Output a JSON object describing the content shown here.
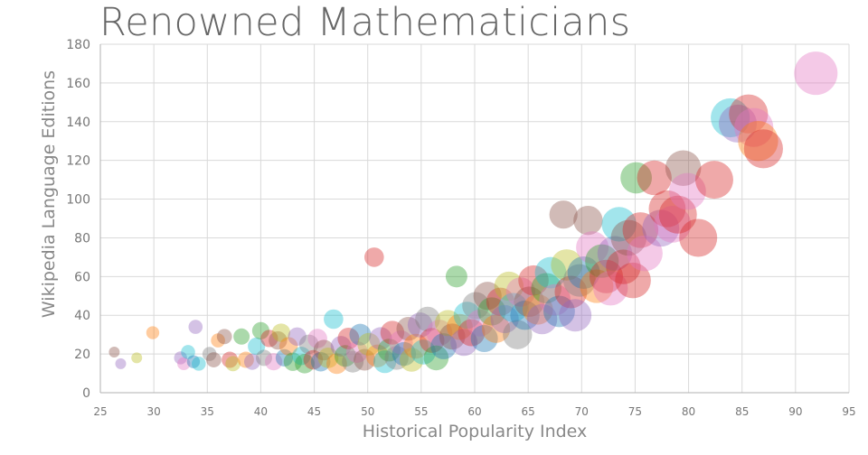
{
  "chart_data": {
    "type": "scatter",
    "title": "Renowned Mathematicians",
    "xlabel": "Historical Popularity Index",
    "ylabel": "Wikipedia Language Editions",
    "xlim": [
      25,
      95
    ],
    "ylim": [
      0,
      180
    ],
    "xticks": [
      25,
      30,
      35,
      40,
      45,
      50,
      55,
      60,
      65,
      70,
      75,
      80,
      85,
      90,
      95
    ],
    "yticks": [
      0,
      20,
      40,
      60,
      80,
      100,
      120,
      140,
      160,
      180
    ],
    "grid": true,
    "legend": "none",
    "palette": [
      "#1f77b4",
      "#ff7f0e",
      "#2ca02c",
      "#d62728",
      "#9467bd",
      "#8c564b",
      "#e377c2",
      "#7f7f7f",
      "#bcbd22",
      "#17becf"
    ],
    "points": [
      {
        "x": 26.3,
        "y": 21,
        "size": 1,
        "color": "#8c564b"
      },
      {
        "x": 26.9,
        "y": 15,
        "size": 1,
        "color": "#9467bd"
      },
      {
        "x": 28.4,
        "y": 18,
        "size": 1,
        "color": "#bcbd22"
      },
      {
        "x": 29.9,
        "y": 31,
        "size": 1.2,
        "color": "#ff7f0e"
      },
      {
        "x": 32.5,
        "y": 18,
        "size": 1.2,
        "color": "#9467bd"
      },
      {
        "x": 32.8,
        "y": 15,
        "size": 1.2,
        "color": "#e377c2"
      },
      {
        "x": 33.2,
        "y": 21,
        "size": 1.3,
        "color": "#17becf"
      },
      {
        "x": 33.7,
        "y": 16,
        "size": 1.2,
        "color": "#1f77b4"
      },
      {
        "x": 33.9,
        "y": 34,
        "size": 1.3,
        "color": "#9467bd"
      },
      {
        "x": 34.2,
        "y": 15,
        "size": 1.3,
        "color": "#17becf"
      },
      {
        "x": 35.2,
        "y": 20,
        "size": 1.3,
        "color": "#7f7f7f"
      },
      {
        "x": 35.6,
        "y": 17,
        "size": 1.4,
        "color": "#8c564b"
      },
      {
        "x": 36.0,
        "y": 27,
        "size": 1.3,
        "color": "#ff7f0e"
      },
      {
        "x": 36.6,
        "y": 29,
        "size": 1.4,
        "color": "#8c564b"
      },
      {
        "x": 37.1,
        "y": 17,
        "size": 1.5,
        "color": "#d62728"
      },
      {
        "x": 37.4,
        "y": 15,
        "size": 1.4,
        "color": "#bcbd22"
      },
      {
        "x": 38.2,
        "y": 29,
        "size": 1.5,
        "color": "#2ca02c"
      },
      {
        "x": 38.6,
        "y": 17,
        "size": 1.5,
        "color": "#ff7f0e"
      },
      {
        "x": 39.2,
        "y": 16,
        "size": 1.5,
        "color": "#9467bd"
      },
      {
        "x": 39.6,
        "y": 24,
        "size": 1.6,
        "color": "#17becf"
      },
      {
        "x": 40.0,
        "y": 32,
        "size": 1.6,
        "color": "#2ca02c"
      },
      {
        "x": 40.3,
        "y": 18,
        "size": 1.5,
        "color": "#7f7f7f"
      },
      {
        "x": 40.8,
        "y": 28,
        "size": 1.6,
        "color": "#d62728"
      },
      {
        "x": 41.2,
        "y": 16,
        "size": 1.6,
        "color": "#e377c2"
      },
      {
        "x": 41.6,
        "y": 27,
        "size": 1.7,
        "color": "#8c564b"
      },
      {
        "x": 41.9,
        "y": 31,
        "size": 1.7,
        "color": "#bcbd22"
      },
      {
        "x": 42.2,
        "y": 18,
        "size": 1.6,
        "color": "#1f77b4"
      },
      {
        "x": 42.6,
        "y": 24,
        "size": 1.7,
        "color": "#ff7f0e"
      },
      {
        "x": 43.0,
        "y": 16,
        "size": 1.7,
        "color": "#2ca02c"
      },
      {
        "x": 43.4,
        "y": 29,
        "size": 1.7,
        "color": "#9467bd"
      },
      {
        "x": 43.8,
        "y": 19,
        "size": 1.7,
        "color": "#17becf"
      },
      {
        "x": 44.1,
        "y": 15,
        "size": 1.8,
        "color": "#2ca02c"
      },
      {
        "x": 44.5,
        "y": 25,
        "size": 1.8,
        "color": "#7f7f7f"
      },
      {
        "x": 44.9,
        "y": 17,
        "size": 1.8,
        "color": "#d62728"
      },
      {
        "x": 45.3,
        "y": 28,
        "size": 1.8,
        "color": "#e377c2"
      },
      {
        "x": 45.6,
        "y": 16,
        "size": 1.8,
        "color": "#1f77b4"
      },
      {
        "x": 45.9,
        "y": 22,
        "size": 1.9,
        "color": "#8c564b"
      },
      {
        "x": 46.3,
        "y": 18,
        "size": 1.9,
        "color": "#bcbd22"
      },
      {
        "x": 46.8,
        "y": 38,
        "size": 1.8,
        "color": "#17becf"
      },
      {
        "x": 47.1,
        "y": 15,
        "size": 1.9,
        "color": "#ff7f0e"
      },
      {
        "x": 47.5,
        "y": 24,
        "size": 1.9,
        "color": "#9467bd"
      },
      {
        "x": 47.9,
        "y": 19,
        "size": 2.0,
        "color": "#2ca02c"
      },
      {
        "x": 48.2,
        "y": 28,
        "size": 2.0,
        "color": "#d62728"
      },
      {
        "x": 48.6,
        "y": 16,
        "size": 2.0,
        "color": "#7f7f7f"
      },
      {
        "x": 49.0,
        "y": 21,
        "size": 2.0,
        "color": "#e377c2"
      },
      {
        "x": 49.3,
        "y": 30,
        "size": 2.0,
        "color": "#1f77b4"
      },
      {
        "x": 49.7,
        "y": 17,
        "size": 2.0,
        "color": "#8c564b"
      },
      {
        "x": 50.1,
        "y": 25,
        "size": 2.1,
        "color": "#bcbd22"
      },
      {
        "x": 50.6,
        "y": 70,
        "size": 1.8,
        "color": "#d62728"
      },
      {
        "x": 50.9,
        "y": 19,
        "size": 2.1,
        "color": "#ff7f0e"
      },
      {
        "x": 51.2,
        "y": 28,
        "size": 2.1,
        "color": "#9467bd"
      },
      {
        "x": 51.6,
        "y": 16,
        "size": 2.1,
        "color": "#17becf"
      },
      {
        "x": 52.0,
        "y": 22,
        "size": 2.1,
        "color": "#2ca02c"
      },
      {
        "x": 52.3,
        "y": 31,
        "size": 2.2,
        "color": "#d62728"
      },
      {
        "x": 52.7,
        "y": 18,
        "size": 2.2,
        "color": "#7f7f7f"
      },
      {
        "x": 53.1,
        "y": 26,
        "size": 2.2,
        "color": "#e377c2"
      },
      {
        "x": 53.4,
        "y": 20,
        "size": 2.2,
        "color": "#1f77b4"
      },
      {
        "x": 53.8,
        "y": 33,
        "size": 2.2,
        "color": "#8c564b"
      },
      {
        "x": 54.1,
        "y": 17,
        "size": 2.2,
        "color": "#bcbd22"
      },
      {
        "x": 54.5,
        "y": 24,
        "size": 2.3,
        "color": "#ff7f0e"
      },
      {
        "x": 54.9,
        "y": 35,
        "size": 2.3,
        "color": "#9467bd"
      },
      {
        "x": 55.2,
        "y": 21,
        "size": 2.3,
        "color": "#17becf"
      },
      {
        "x": 55.6,
        "y": 38,
        "size": 2.3,
        "color": "#7f7f7f"
      },
      {
        "x": 56.0,
        "y": 27,
        "size": 2.3,
        "color": "#d62728"
      },
      {
        "x": 56.4,
        "y": 18,
        "size": 2.3,
        "color": "#2ca02c"
      },
      {
        "x": 56.7,
        "y": 31,
        "size": 2.4,
        "color": "#e377c2"
      },
      {
        "x": 57.1,
        "y": 24,
        "size": 2.4,
        "color": "#1f77b4"
      },
      {
        "x": 57.5,
        "y": 36,
        "size": 2.4,
        "color": "#bcbd22"
      },
      {
        "x": 57.9,
        "y": 29,
        "size": 2.4,
        "color": "#8c564b"
      },
      {
        "x": 58.3,
        "y": 60,
        "size": 2.0,
        "color": "#2ca02c"
      },
      {
        "x": 58.6,
        "y": 34,
        "size": 2.4,
        "color": "#ff7f0e"
      },
      {
        "x": 59.0,
        "y": 26,
        "size": 2.5,
        "color": "#9467bd"
      },
      {
        "x": 59.3,
        "y": 40,
        "size": 2.5,
        "color": "#17becf"
      },
      {
        "x": 59.7,
        "y": 31,
        "size": 2.5,
        "color": "#d62728"
      },
      {
        "x": 60.1,
        "y": 45,
        "size": 2.5,
        "color": "#7f7f7f"
      },
      {
        "x": 60.5,
        "y": 36,
        "size": 2.5,
        "color": "#e377c2"
      },
      {
        "x": 60.9,
        "y": 28,
        "size": 2.5,
        "color": "#1f77b4"
      },
      {
        "x": 61.2,
        "y": 50,
        "size": 2.6,
        "color": "#8c564b"
      },
      {
        "x": 61.6,
        "y": 42,
        "size": 2.6,
        "color": "#2ca02c"
      },
      {
        "x": 62.0,
        "y": 33,
        "size": 2.6,
        "color": "#ff7f0e"
      },
      {
        "x": 62.4,
        "y": 47,
        "size": 2.6,
        "color": "#d62728"
      },
      {
        "x": 62.8,
        "y": 38,
        "size": 2.6,
        "color": "#9467bd"
      },
      {
        "x": 63.2,
        "y": 55,
        "size": 2.7,
        "color": "#bcbd22"
      },
      {
        "x": 63.6,
        "y": 44,
        "size": 2.7,
        "color": "#17becf"
      },
      {
        "x": 64.0,
        "y": 30,
        "size": 2.7,
        "color": "#7f7f7f"
      },
      {
        "x": 64.3,
        "y": 52,
        "size": 2.7,
        "color": "#e377c2"
      },
      {
        "x": 64.7,
        "y": 40,
        "size": 2.7,
        "color": "#1f77b4"
      },
      {
        "x": 65.1,
        "y": 47,
        "size": 2.8,
        "color": "#8c564b"
      },
      {
        "x": 65.5,
        "y": 58,
        "size": 2.8,
        "color": "#d62728"
      },
      {
        "x": 65.9,
        "y": 43,
        "size": 2.8,
        "color": "#ff7f0e"
      },
      {
        "x": 66.3,
        "y": 38,
        "size": 2.8,
        "color": "#9467bd"
      },
      {
        "x": 66.7,
        "y": 54,
        "size": 2.8,
        "color": "#2ca02c"
      },
      {
        "x": 67.1,
        "y": 62,
        "size": 2.9,
        "color": "#17becf"
      },
      {
        "x": 67.5,
        "y": 48,
        "size": 2.9,
        "color": "#e377c2"
      },
      {
        "x": 67.9,
        "y": 42,
        "size": 2.9,
        "color": "#1f77b4"
      },
      {
        "x": 68.3,
        "y": 92,
        "size": 2.6,
        "color": "#8c564b"
      },
      {
        "x": 68.6,
        "y": 66,
        "size": 2.9,
        "color": "#bcbd22"
      },
      {
        "x": 69.0,
        "y": 52,
        "size": 3.0,
        "color": "#d62728"
      },
      {
        "x": 69.4,
        "y": 40,
        "size": 3.0,
        "color": "#9467bd"
      },
      {
        "x": 69.8,
        "y": 58,
        "size": 3.0,
        "color": "#7f7f7f"
      },
      {
        "x": 70.2,
        "y": 62,
        "size": 3.0,
        "color": "#1f77b4"
      },
      {
        "x": 70.6,
        "y": 89,
        "size": 2.7,
        "color": "#8c564b"
      },
      {
        "x": 71.0,
        "y": 75,
        "size": 3.0,
        "color": "#e377c2"
      },
      {
        "x": 71.4,
        "y": 55,
        "size": 3.1,
        "color": "#ff7f0e"
      },
      {
        "x": 71.9,
        "y": 68,
        "size": 3.1,
        "color": "#2ca02c"
      },
      {
        "x": 72.3,
        "y": 60,
        "size": 3.1,
        "color": "#d62728"
      },
      {
        "x": 72.7,
        "y": 54,
        "size": 3.2,
        "color": "#e377c2"
      },
      {
        "x": 73.1,
        "y": 72,
        "size": 3.2,
        "color": "#9467bd"
      },
      {
        "x": 73.5,
        "y": 87,
        "size": 3.2,
        "color": "#17becf"
      },
      {
        "x": 73.9,
        "y": 65,
        "size": 3.2,
        "color": "#d62728"
      },
      {
        "x": 74.4,
        "y": 80,
        "size": 3.3,
        "color": "#8c564b"
      },
      {
        "x": 74.8,
        "y": 58,
        "size": 3.3,
        "color": "#d62728"
      },
      {
        "x": 75.1,
        "y": 111,
        "size": 2.9,
        "color": "#2ca02c"
      },
      {
        "x": 75.5,
        "y": 84,
        "size": 3.3,
        "color": "#d62728"
      },
      {
        "x": 75.9,
        "y": 72,
        "size": 3.3,
        "color": "#e377c2"
      },
      {
        "x": 76.8,
        "y": 111,
        "size": 3.2,
        "color": "#d62728"
      },
      {
        "x": 77.4,
        "y": 85,
        "size": 3.4,
        "color": "#9467bd"
      },
      {
        "x": 78.0,
        "y": 95,
        "size": 3.4,
        "color": "#d62728"
      },
      {
        "x": 78.5,
        "y": 87,
        "size": 3.4,
        "color": "#e377c2"
      },
      {
        "x": 79.0,
        "y": 92,
        "size": 3.5,
        "color": "#d62728"
      },
      {
        "x": 79.5,
        "y": 116,
        "size": 3.3,
        "color": "#8c564b"
      },
      {
        "x": 79.9,
        "y": 104,
        "size": 3.4,
        "color": "#e377c2"
      },
      {
        "x": 80.9,
        "y": 80,
        "size": 3.5,
        "color": "#d62728"
      },
      {
        "x": 82.4,
        "y": 110,
        "size": 3.5,
        "color": "#d62728"
      },
      {
        "x": 83.9,
        "y": 142,
        "size": 3.6,
        "color": "#17becf"
      },
      {
        "x": 84.6,
        "y": 139,
        "size": 3.5,
        "color": "#9467bd"
      },
      {
        "x": 85.6,
        "y": 144,
        "size": 3.6,
        "color": "#d62728"
      },
      {
        "x": 86.1,
        "y": 137,
        "size": 3.6,
        "color": "#e377c2"
      },
      {
        "x": 86.5,
        "y": 130,
        "size": 3.7,
        "color": "#ff7f0e"
      },
      {
        "x": 87.0,
        "y": 126,
        "size": 3.6,
        "color": "#d62728"
      },
      {
        "x": 91.9,
        "y": 165,
        "size": 4.0,
        "color": "#e377c2"
      }
    ]
  }
}
